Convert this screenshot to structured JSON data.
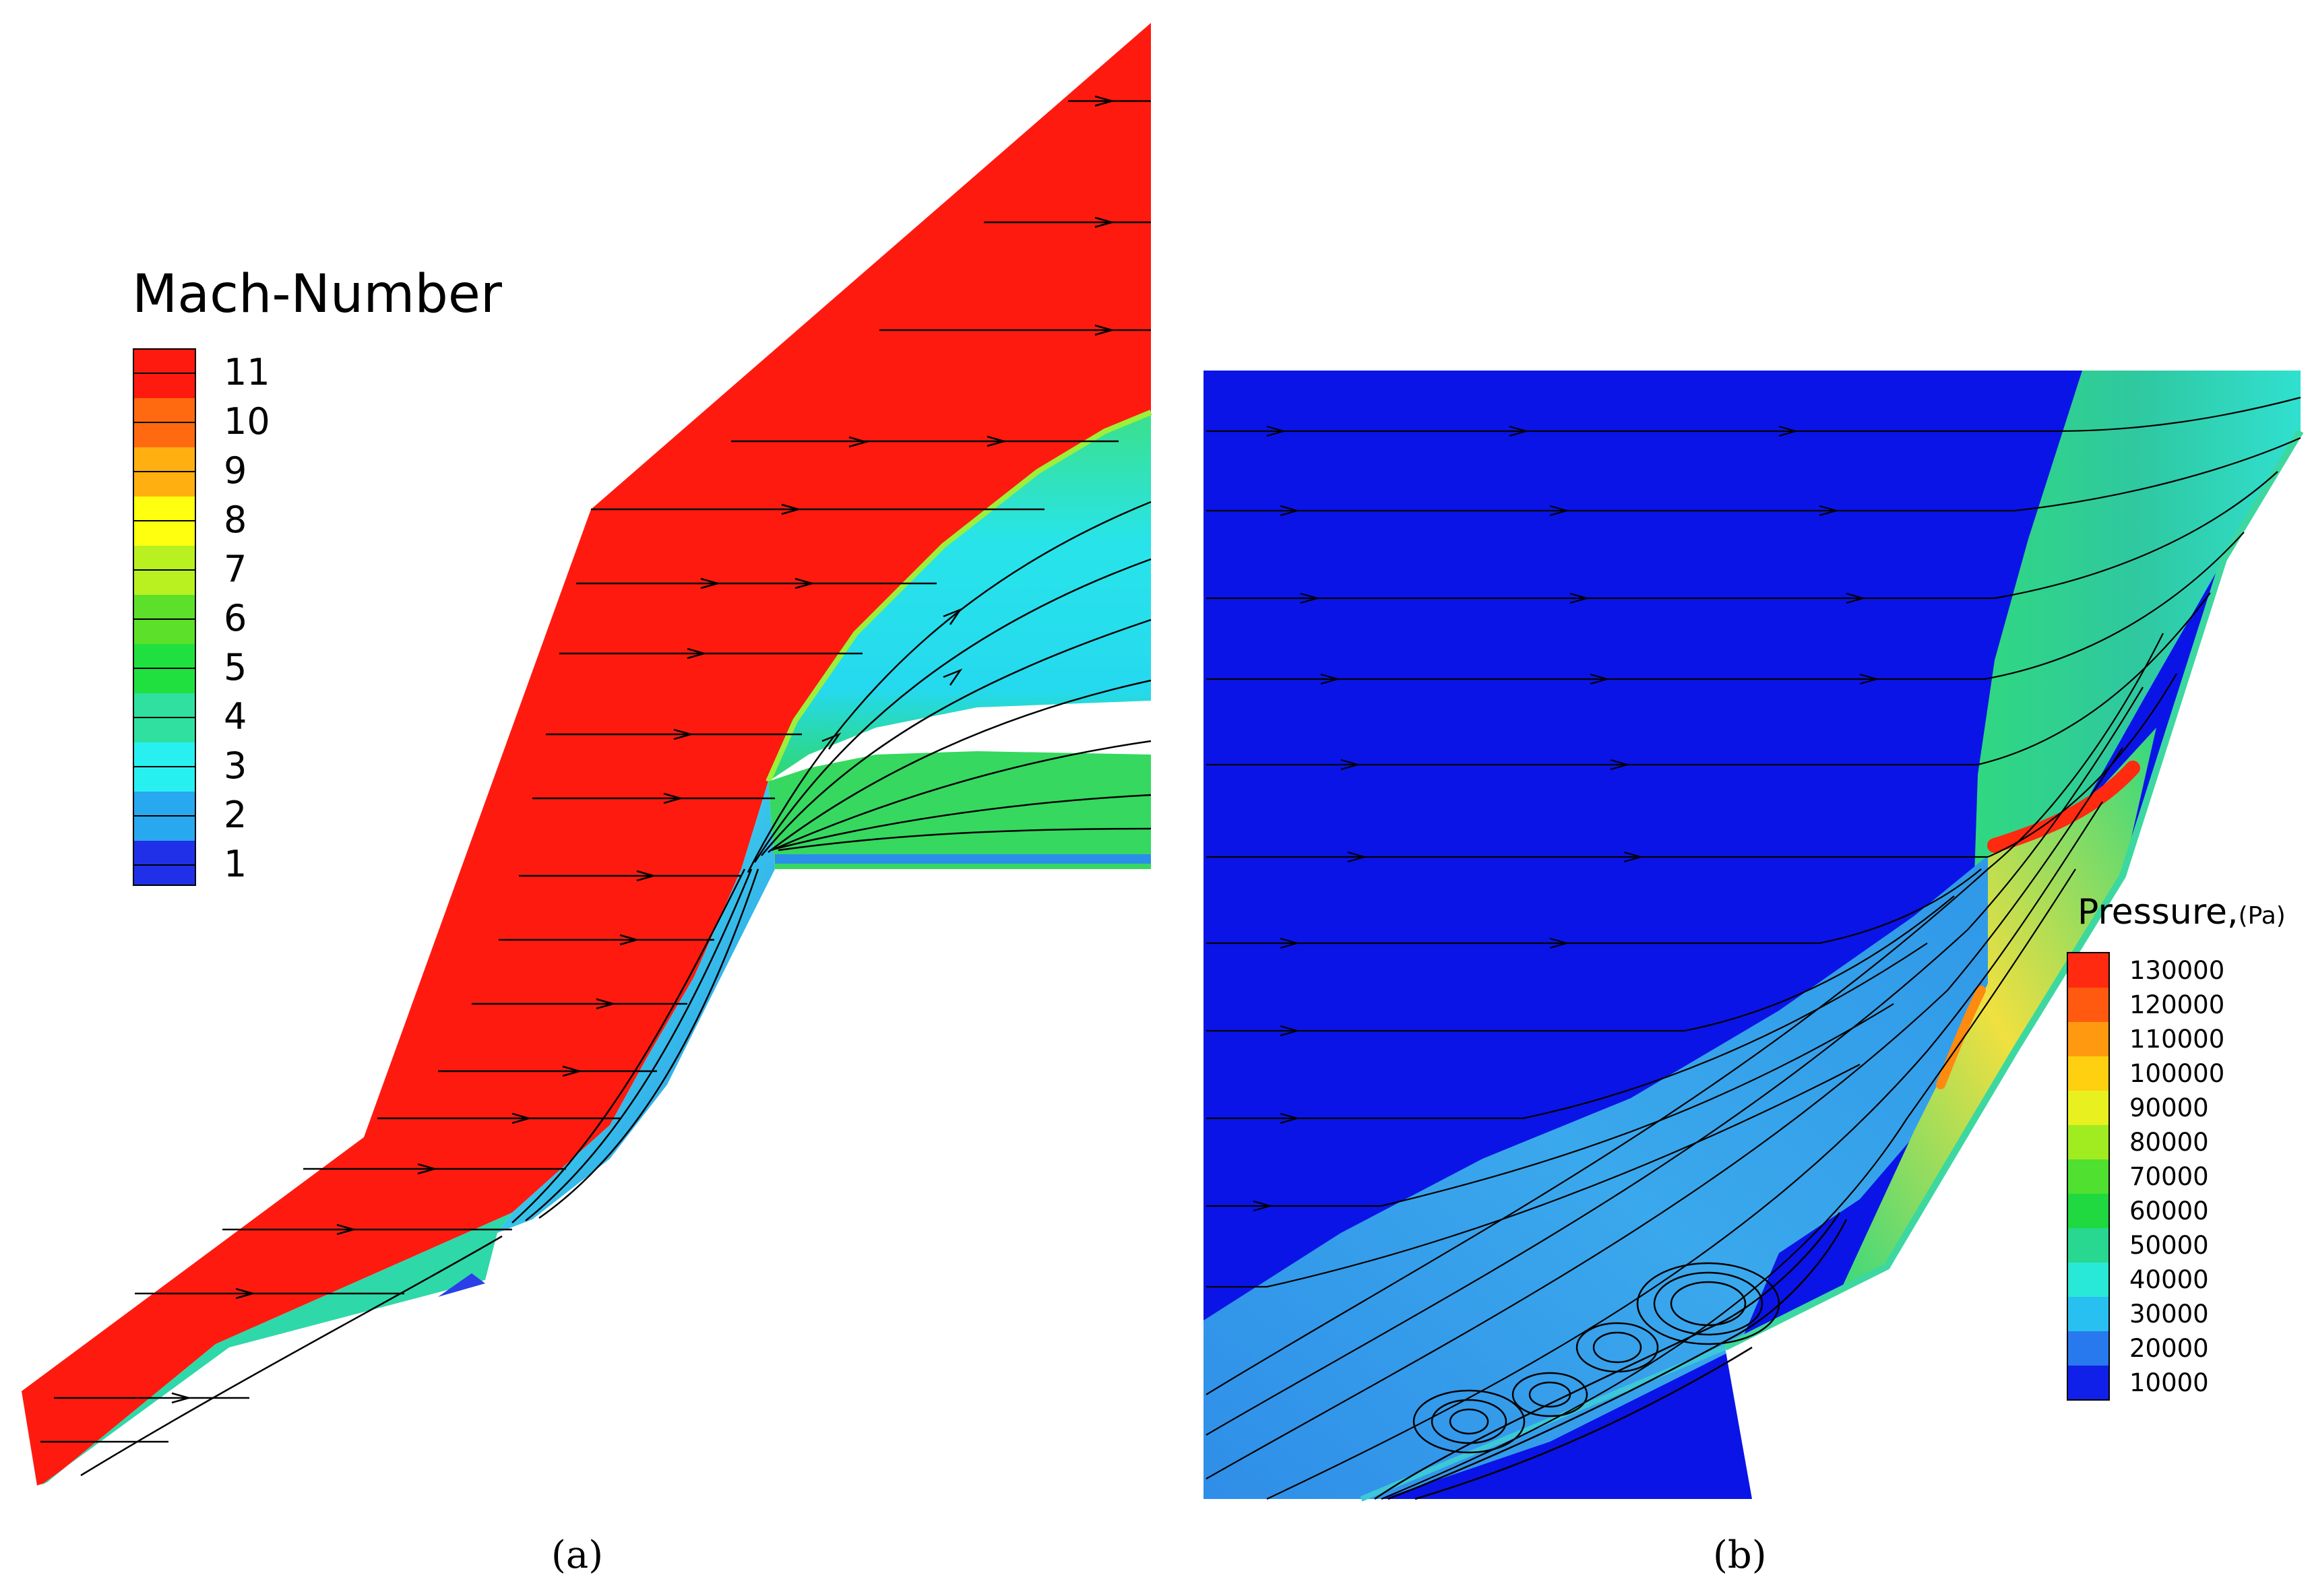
{
  "panel_a": {
    "legend_title": "Mach-Number",
    "legend_labels": [
      "11",
      "10",
      "9",
      "8",
      "7",
      "6",
      "5",
      "4",
      "3",
      "2",
      "1"
    ],
    "caption": "(a)",
    "colors": {
      "freestream": "#ff1a10",
      "shock_region": "#26e0e6",
      "boundary_layer": "#3a8fe8",
      "wall_layer": "#2fe06a"
    }
  },
  "panel_b": {
    "legend_title": "Pressure,",
    "legend_unit": "(Pa)",
    "legend_labels": [
      "130000",
      "120000",
      "110000",
      "100000",
      "90000",
      "80000",
      "70000",
      "60000",
      "50000",
      "40000",
      "30000",
      "20000",
      "10000"
    ],
    "caption": "(b)",
    "colors": {
      "freestream": "#0a14e6",
      "separated_region": "#3aa0ea",
      "post_shock": "#2fd86a",
      "peak": "#ff2a10"
    }
  }
}
